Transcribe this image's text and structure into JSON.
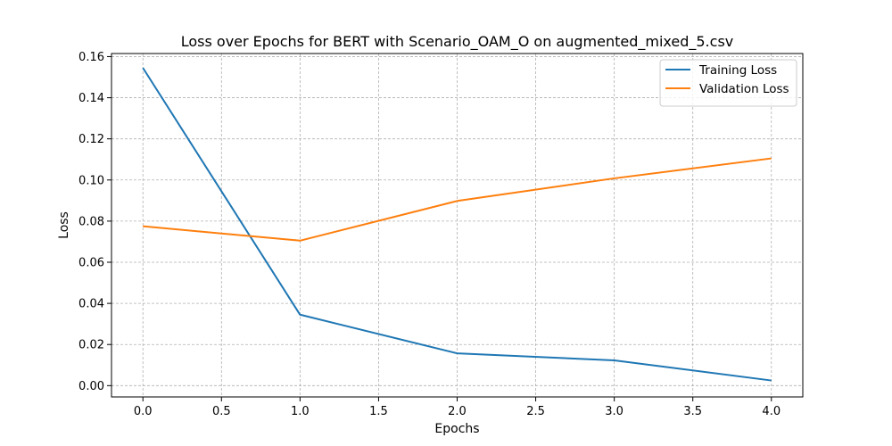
{
  "chart_data": {
    "type": "line",
    "title": "Loss over Epochs for BERT with Scenario_OAM_O on augmented_mixed_5.csv",
    "xlabel": "Epochs",
    "ylabel": "Loss",
    "xlim": [
      -0.2,
      4.2
    ],
    "ylim": [
      -0.0055,
      0.1615
    ],
    "x": [
      0,
      1,
      2,
      3,
      4
    ],
    "x_ticks": [
      0.0,
      0.5,
      1.0,
      1.5,
      2.0,
      2.5,
      3.0,
      3.5,
      4.0
    ],
    "x_tick_labels": [
      "0.0",
      "0.5",
      "1.0",
      "1.5",
      "2.0",
      "2.5",
      "3.0",
      "3.5",
      "4.0"
    ],
    "y_ticks": [
      0.0,
      0.02,
      0.04,
      0.06,
      0.08,
      0.1,
      0.12,
      0.14,
      0.16
    ],
    "y_tick_labels": [
      "0.00",
      "0.02",
      "0.04",
      "0.06",
      "0.08",
      "0.10",
      "0.12",
      "0.14",
      "0.16"
    ],
    "grid": true,
    "legend_position": "top-right",
    "series": [
      {
        "name": "Training Loss",
        "color": "#1f77b4",
        "values": [
          0.1545,
          0.0345,
          0.0157,
          0.0123,
          0.0025
        ]
      },
      {
        "name": "Validation Loss",
        "color": "#ff7f0e",
        "values": [
          0.0775,
          0.0705,
          0.0898,
          0.1008,
          0.1105
        ]
      }
    ]
  }
}
